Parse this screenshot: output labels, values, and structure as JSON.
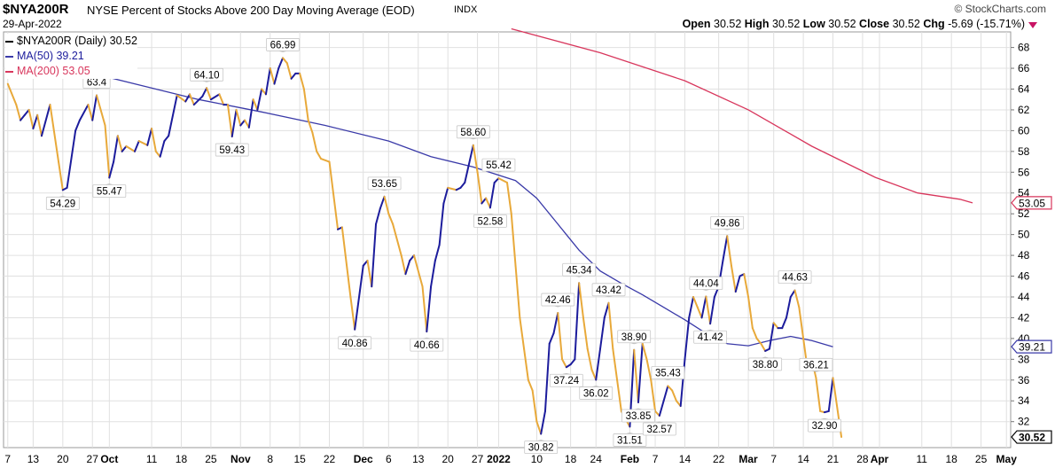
{
  "header": {
    "symbol": "$NYA200R",
    "description": "NYSE Percent of Stocks Above 200 Day Moving Average (EOD)",
    "exchange": "INDX",
    "date": "29-Apr-2022",
    "watermark": "© StockCharts.com",
    "open_label": "Open",
    "open": "30.52",
    "high_label": "High",
    "high": "30.52",
    "low_label": "Low",
    "low": "30.52",
    "close_label": "Close",
    "close": "30.52",
    "chg_label": "Chg",
    "chg": "-5.69 (-15.71%)"
  },
  "legend": {
    "main": "$NYA200R (Daily) 30.52",
    "ma50": "MA(50) 39.21",
    "ma200": "MA(200) 53.05"
  },
  "colors": {
    "up": "#1c1c9c",
    "down": "#e8a93a",
    "ma50": "#3a3aa8",
    "ma200": "#d8365c",
    "grid": "#e0e0e0"
  },
  "chart_data": {
    "type": "line",
    "y_ticks": [
      32,
      34,
      36,
      38,
      40,
      42,
      44,
      46,
      48,
      50,
      52,
      54,
      56,
      58,
      60,
      62,
      64,
      66,
      68
    ],
    "ylim": [
      29.5,
      69.5
    ],
    "x_ticks": [
      {
        "label": "7",
        "d": 0
      },
      {
        "label": "13",
        "d": 6
      },
      {
        "label": "20",
        "d": 13
      },
      {
        "label": "27",
        "d": 20
      },
      {
        "label": "Oct",
        "d": 24
      },
      {
        "label": "11",
        "d": 34
      },
      {
        "label": "18",
        "d": 41
      },
      {
        "label": "25",
        "d": 48
      },
      {
        "label": "Nov",
        "d": 55
      },
      {
        "label": "8",
        "d": 62
      },
      {
        "label": "15",
        "d": 69
      },
      {
        "label": "22",
        "d": 76
      },
      {
        "label": "Dec",
        "d": 84
      },
      {
        "label": "6",
        "d": 90
      },
      {
        "label": "13",
        "d": 97
      },
      {
        "label": "20",
        "d": 104
      },
      {
        "label": "27",
        "d": 111
      },
      {
        "label": "2022",
        "d": 116
      },
      {
        "label": "10",
        "d": 125
      },
      {
        "label": "18",
        "d": 133
      },
      {
        "label": "24",
        "d": 139
      },
      {
        "label": "Feb",
        "d": 147
      },
      {
        "label": "7",
        "d": 153
      },
      {
        "label": "14",
        "d": 160
      },
      {
        "label": "22",
        "d": 168
      },
      {
        "label": "Mar",
        "d": 175
      },
      {
        "label": "7",
        "d": 181
      },
      {
        "label": "14",
        "d": 188
      },
      {
        "label": "21",
        "d": 195
      },
      {
        "label": "28",
        "d": 202
      },
      {
        "label": "Apr",
        "d": 206
      },
      {
        "label": "11",
        "d": 216
      },
      {
        "label": "18",
        "d": 223
      },
      {
        "label": "25",
        "d": 230
      },
      {
        "label": "May",
        "d": 236
      }
    ],
    "series": [
      {
        "name": "$NYA200R (Daily)",
        "style": "updown",
        "points": [
          [
            0,
            64.5
          ],
          [
            2,
            62.5
          ],
          [
            3,
            61
          ],
          [
            4,
            61.5
          ],
          [
            5,
            62
          ],
          [
            6,
            60.2
          ],
          [
            7,
            61.5
          ],
          [
            8,
            59.5
          ],
          [
            10,
            62.5
          ],
          [
            12,
            57
          ],
          [
            13,
            54.29
          ],
          [
            14,
            54.5
          ],
          [
            16,
            60
          ],
          [
            17,
            61
          ],
          [
            19,
            62.5
          ],
          [
            20,
            61
          ],
          [
            21,
            63.4
          ],
          [
            23,
            60.5
          ],
          [
            24,
            55.47
          ],
          [
            25,
            57
          ],
          [
            26,
            59.5
          ],
          [
            27,
            58
          ],
          [
            28,
            58.5
          ],
          [
            30,
            58
          ],
          [
            31,
            59
          ],
          [
            33,
            58.6
          ],
          [
            34,
            60.2
          ],
          [
            35,
            58
          ],
          [
            36,
            57.5
          ],
          [
            37,
            59
          ],
          [
            38,
            59.5
          ],
          [
            40,
            63.4
          ],
          [
            42,
            62.8
          ],
          [
            43,
            63.5
          ],
          [
            44,
            62.5
          ],
          [
            46,
            63.3
          ],
          [
            47,
            64.1
          ],
          [
            48,
            63
          ],
          [
            50,
            63.5
          ],
          [
            51,
            62.5
          ],
          [
            52,
            62.5
          ],
          [
            53,
            59.43
          ],
          [
            54,
            62
          ],
          [
            55,
            60.5
          ],
          [
            56,
            61
          ],
          [
            57,
            60.3
          ],
          [
            58,
            63
          ],
          [
            59,
            62
          ],
          [
            60,
            64
          ],
          [
            61,
            63.5
          ],
          [
            62,
            66
          ],
          [
            63,
            64.5
          ],
          [
            64,
            66
          ],
          [
            65,
            66.99
          ],
          [
            66,
            66.5
          ],
          [
            67,
            65
          ],
          [
            68,
            65.5
          ],
          [
            69,
            65.5
          ],
          [
            70,
            64
          ],
          [
            71,
            61
          ],
          [
            72,
            59.8
          ],
          [
            73,
            58
          ],
          [
            74,
            57.3
          ],
          [
            76,
            57
          ],
          [
            78,
            50.5
          ],
          [
            79,
            50.7
          ],
          [
            81,
            44
          ],
          [
            82,
            40.86
          ],
          [
            84,
            47
          ],
          [
            85,
            47.5
          ],
          [
            86,
            45
          ],
          [
            87,
            51
          ],
          [
            88,
            52.5
          ],
          [
            89,
            53.65
          ],
          [
            90,
            52
          ],
          [
            91,
            51
          ],
          [
            93,
            48
          ],
          [
            94,
            46.2
          ],
          [
            95,
            47.5
          ],
          [
            96,
            48
          ],
          [
            98,
            45
          ],
          [
            99,
            40.66
          ],
          [
            100,
            45
          ],
          [
            101,
            47.5
          ],
          [
            102,
            49
          ],
          [
            103,
            53
          ],
          [
            104,
            54.5
          ],
          [
            106,
            54.3
          ],
          [
            107,
            54.5
          ],
          [
            108,
            55
          ],
          [
            110,
            58.6
          ],
          [
            111,
            56
          ],
          [
            112,
            53
          ],
          [
            113,
            53.5
          ],
          [
            114,
            52.58
          ],
          [
            115,
            55
          ],
          [
            116,
            55.42
          ],
          [
            118,
            55
          ],
          [
            119,
            52
          ],
          [
            120,
            47
          ],
          [
            121,
            42
          ],
          [
            122,
            39
          ],
          [
            123,
            36
          ],
          [
            124,
            35
          ],
          [
            125,
            32
          ],
          [
            126,
            30.82
          ],
          [
            127,
            33
          ],
          [
            128,
            39.5
          ],
          [
            129,
            40.5
          ],
          [
            130,
            42.46
          ],
          [
            131,
            38
          ],
          [
            132,
            37.24
          ],
          [
            133,
            37.5
          ],
          [
            134,
            38
          ],
          [
            135,
            45.34
          ],
          [
            136,
            42
          ],
          [
            137,
            39
          ],
          [
            138,
            37
          ],
          [
            139,
            36.02
          ],
          [
            140,
            39
          ],
          [
            141,
            42
          ],
          [
            142,
            43.42
          ],
          [
            143,
            39
          ],
          [
            144,
            36
          ],
          [
            145,
            33
          ],
          [
            147,
            31.51
          ],
          [
            148,
            38.9
          ],
          [
            149,
            33.85
          ],
          [
            150,
            39.5
          ],
          [
            151,
            38
          ],
          [
            152,
            36
          ],
          [
            153,
            33
          ],
          [
            154,
            32.57
          ],
          [
            155,
            34
          ],
          [
            156,
            35.43
          ],
          [
            157,
            35
          ],
          [
            158,
            34
          ],
          [
            159,
            33.5
          ],
          [
            160,
            38
          ],
          [
            161,
            42
          ],
          [
            162,
            44
          ],
          [
            163,
            43
          ],
          [
            164,
            42
          ],
          [
            165,
            44.04
          ],
          [
            166,
            41.42
          ],
          [
            167,
            44
          ],
          [
            168,
            45
          ],
          [
            169,
            47.5
          ],
          [
            170,
            49.86
          ],
          [
            171,
            47
          ],
          [
            172,
            44.5
          ],
          [
            173,
            46
          ],
          [
            174,
            46.2
          ],
          [
            175,
            44
          ],
          [
            176,
            41
          ],
          [
            177,
            40
          ],
          [
            178,
            39.5
          ],
          [
            179,
            38.8
          ],
          [
            180,
            39
          ],
          [
            181,
            41.5
          ],
          [
            182,
            41
          ],
          [
            183,
            41
          ],
          [
            184,
            42
          ],
          [
            185,
            44
          ],
          [
            186,
            44.63
          ],
          [
            187,
            43
          ],
          [
            188,
            40
          ],
          [
            189,
            37
          ],
          [
            190,
            38
          ],
          [
            191,
            36.21
          ],
          [
            192,
            33
          ],
          [
            193,
            32.9
          ],
          [
            194,
            33
          ],
          [
            195,
            36.21
          ],
          [
            197,
            30.52
          ]
        ],
        "labels": [
          {
            "d": 13,
            "v": 54.29,
            "text": "54.29",
            "pos": "below"
          },
          {
            "d": 21,
            "v": 63.4,
            "text": "63.4",
            "pos": "above"
          },
          {
            "d": 24,
            "v": 55.47,
            "text": "55.47",
            "pos": "below"
          },
          {
            "d": 47,
            "v": 64.1,
            "text": "64.10",
            "pos": "above"
          },
          {
            "d": 53,
            "v": 59.43,
            "text": "59.43",
            "pos": "below"
          },
          {
            "d": 65,
            "v": 66.99,
            "text": "66.99",
            "pos": "above"
          },
          {
            "d": 82,
            "v": 40.86,
            "text": "40.86",
            "pos": "below"
          },
          {
            "d": 89,
            "v": 53.65,
            "text": "53.65",
            "pos": "above"
          },
          {
            "d": 99,
            "v": 40.66,
            "text": "40.66",
            "pos": "below"
          },
          {
            "d": 110,
            "v": 58.6,
            "text": "58.60",
            "pos": "above"
          },
          {
            "d": 114,
            "v": 52.58,
            "text": "52.58",
            "pos": "below"
          },
          {
            "d": 116,
            "v": 55.42,
            "text": "55.42",
            "pos": "above"
          },
          {
            "d": 126,
            "v": 30.82,
            "text": "30.82",
            "pos": "below"
          },
          {
            "d": 130,
            "v": 42.46,
            "text": "42.46",
            "pos": "above"
          },
          {
            "d": 132,
            "v": 37.24,
            "text": "37.24",
            "pos": "below"
          },
          {
            "d": 135,
            "v": 45.34,
            "text": "45.34",
            "pos": "above"
          },
          {
            "d": 139,
            "v": 36.02,
            "text": "36.02",
            "pos": "below"
          },
          {
            "d": 142,
            "v": 43.42,
            "text": "43.42",
            "pos": "above"
          },
          {
            "d": 147,
            "v": 31.51,
            "text": "31.51",
            "pos": "below"
          },
          {
            "d": 148,
            "v": 38.9,
            "text": "38.90",
            "pos": "above"
          },
          {
            "d": 149,
            "v": 33.85,
            "text": "33.85",
            "pos": "below"
          },
          {
            "d": 154,
            "v": 32.57,
            "text": "32.57",
            "pos": "below"
          },
          {
            "d": 156,
            "v": 35.43,
            "text": "35.43",
            "pos": "above"
          },
          {
            "d": 165,
            "v": 44.04,
            "text": "44.04",
            "pos": "above"
          },
          {
            "d": 166,
            "v": 41.42,
            "text": "41.42",
            "pos": "below"
          },
          {
            "d": 170,
            "v": 49.86,
            "text": "49.86",
            "pos": "above"
          },
          {
            "d": 179,
            "v": 38.8,
            "text": "38.80",
            "pos": "below"
          },
          {
            "d": 186,
            "v": 44.63,
            "text": "44.63",
            "pos": "above"
          },
          {
            "d": 191,
            "v": 36.21,
            "text": "36.21",
            "pos": "above"
          },
          {
            "d": 193,
            "v": 32.9,
            "text": "32.90",
            "pos": "below"
          }
        ]
      },
      {
        "name": "MA(50)",
        "style": "ma50",
        "points": [
          [
            0,
            67
          ],
          [
            15,
            66
          ],
          [
            30,
            64.5
          ],
          [
            45,
            63
          ],
          [
            60,
            61.8
          ],
          [
            75,
            60.5
          ],
          [
            90,
            59
          ],
          [
            100,
            57.5
          ],
          [
            110,
            56.5
          ],
          [
            120,
            55.2
          ],
          [
            125,
            53.5
          ],
          [
            130,
            51
          ],
          [
            135,
            48.5
          ],
          [
            140,
            46.5
          ],
          [
            145,
            45.3
          ],
          [
            150,
            44.2
          ],
          [
            155,
            43
          ],
          [
            160,
            41.8
          ],
          [
            165,
            40.5
          ],
          [
            170,
            39.5
          ],
          [
            175,
            39.3
          ],
          [
            180,
            39.8
          ],
          [
            185,
            40.2
          ],
          [
            190,
            39.8
          ],
          [
            195,
            39.21
          ]
        ]
      },
      {
        "name": "MA(200)",
        "style": "ma200",
        "points": [
          [
            119,
            69.8
          ],
          [
            140,
            67.5
          ],
          [
            160,
            64.8
          ],
          [
            175,
            62
          ],
          [
            190,
            58.5
          ],
          [
            205,
            55.5
          ],
          [
            215,
            54
          ],
          [
            225,
            53.4
          ],
          [
            228,
            53.05
          ]
        ]
      }
    ],
    "axis_badges": [
      {
        "v": 53.05,
        "text": "53.05",
        "color": "#d8365c"
      },
      {
        "v": 39.21,
        "text": "39.21",
        "color": "#3a3aa8"
      },
      {
        "v": 30.52,
        "text": "30.52",
        "color": "#000000"
      }
    ]
  }
}
